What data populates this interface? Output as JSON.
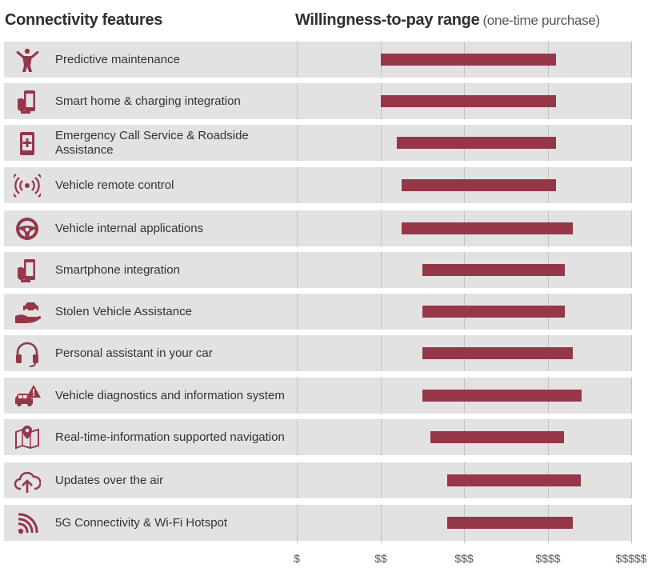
{
  "header": {
    "left_title": "Connectivity features",
    "right_title": "Willingness-to-pay range",
    "right_subtitle": "(one-time purchase)"
  },
  "colors": {
    "bar": "#953649",
    "icon": "#953649",
    "row_bg": "#e2e2e2"
  },
  "chart_data": {
    "type": "bar",
    "orientation": "horizontal-range",
    "title": "Willingness-to-pay range",
    "subtitle": "(one-time purchase)",
    "x_ticks": [
      "$",
      "$$",
      "$$$",
      "$$$$",
      "$$$$$"
    ],
    "x_range": [
      1,
      5
    ],
    "grid": true,
    "rows": [
      {
        "label": "Predictive maintenance",
        "icon": "mechanic-tools-icon",
        "low": 2.0,
        "high": 4.1
      },
      {
        "label": "Smart home & charging integration",
        "icon": "smartphone-hand-icon",
        "low": 2.0,
        "high": 4.1
      },
      {
        "label": "Emergency Call Service & Roadside Assistance",
        "icon": "emergency-phone-icon",
        "low": 2.2,
        "high": 4.1
      },
      {
        "label": "Vehicle remote control",
        "icon": "remote-signal-icon",
        "low": 2.25,
        "high": 4.1
      },
      {
        "label": "Vehicle internal applications",
        "icon": "steering-wheel-icon",
        "low": 2.25,
        "high": 4.3
      },
      {
        "label": "Smartphone integration",
        "icon": "smartphone-hand-icon",
        "low": 2.5,
        "high": 4.2
      },
      {
        "label": "Stolen Vehicle Assistance",
        "icon": "car-in-hand-icon",
        "low": 2.5,
        "high": 4.2
      },
      {
        "label": "Personal assistant in your car",
        "icon": "headset-icon",
        "low": 2.5,
        "high": 4.3
      },
      {
        "label": "Vehicle diagnostics and information system",
        "icon": "car-warning-icon",
        "low": 2.5,
        "high": 4.4
      },
      {
        "label": "Real-time-information supported navigation",
        "icon": "map-pin-icon",
        "low": 2.6,
        "high": 4.2
      },
      {
        "label": "Updates over the air",
        "icon": "cloud-upload-icon",
        "low": 2.8,
        "high": 4.4
      },
      {
        "label": "5G Connectivity & Wi-Fi Hotspot",
        "icon": "wifi-signal-icon",
        "low": 2.8,
        "high": 4.3
      }
    ]
  }
}
